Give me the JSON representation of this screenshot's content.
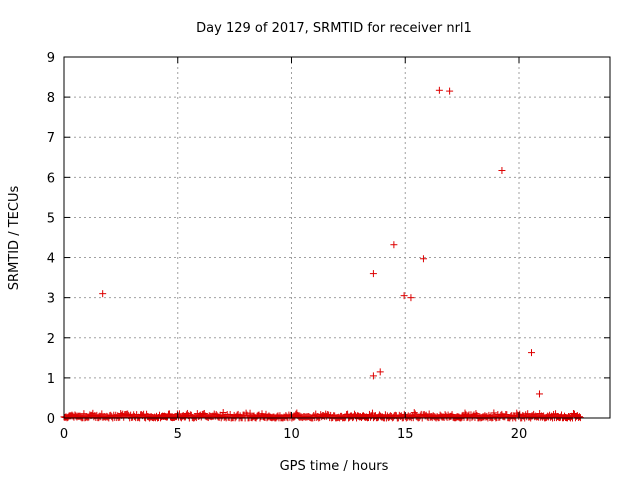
{
  "chart_data": {
    "type": "scatter",
    "title": "Day 129 of 2017, SRMTID for receiver nrl1",
    "xlabel": "GPS time / hours",
    "ylabel": "SRMTID / TECUs",
    "xlim": [
      0,
      24
    ],
    "ylim": [
      0,
      9
    ],
    "xticks": [
      0,
      5,
      10,
      15,
      20
    ],
    "yticks": [
      0,
      1,
      2,
      3,
      4,
      5,
      6,
      7,
      8,
      9
    ],
    "grid": true,
    "marker": "+",
    "marker_color": "#dd0000",
    "baseline_range": {
      "x_start": 0.0,
      "x_end": 22.7,
      "y_min": 0.0,
      "y_max": 0.15,
      "description": "dense band of points near zero"
    },
    "points": [
      {
        "x": 1.7,
        "y": 3.1
      },
      {
        "x": 13.6,
        "y": 3.6
      },
      {
        "x": 13.6,
        "y": 1.05
      },
      {
        "x": 13.9,
        "y": 1.15
      },
      {
        "x": 14.5,
        "y": 4.32
      },
      {
        "x": 14.95,
        "y": 3.05
      },
      {
        "x": 15.25,
        "y": 3.0
      },
      {
        "x": 15.8,
        "y": 3.97
      },
      {
        "x": 16.5,
        "y": 8.17
      },
      {
        "x": 16.95,
        "y": 8.15
      },
      {
        "x": 19.25,
        "y": 6.17
      },
      {
        "x": 20.55,
        "y": 1.63
      },
      {
        "x": 20.9,
        "y": 0.6
      }
    ]
  }
}
